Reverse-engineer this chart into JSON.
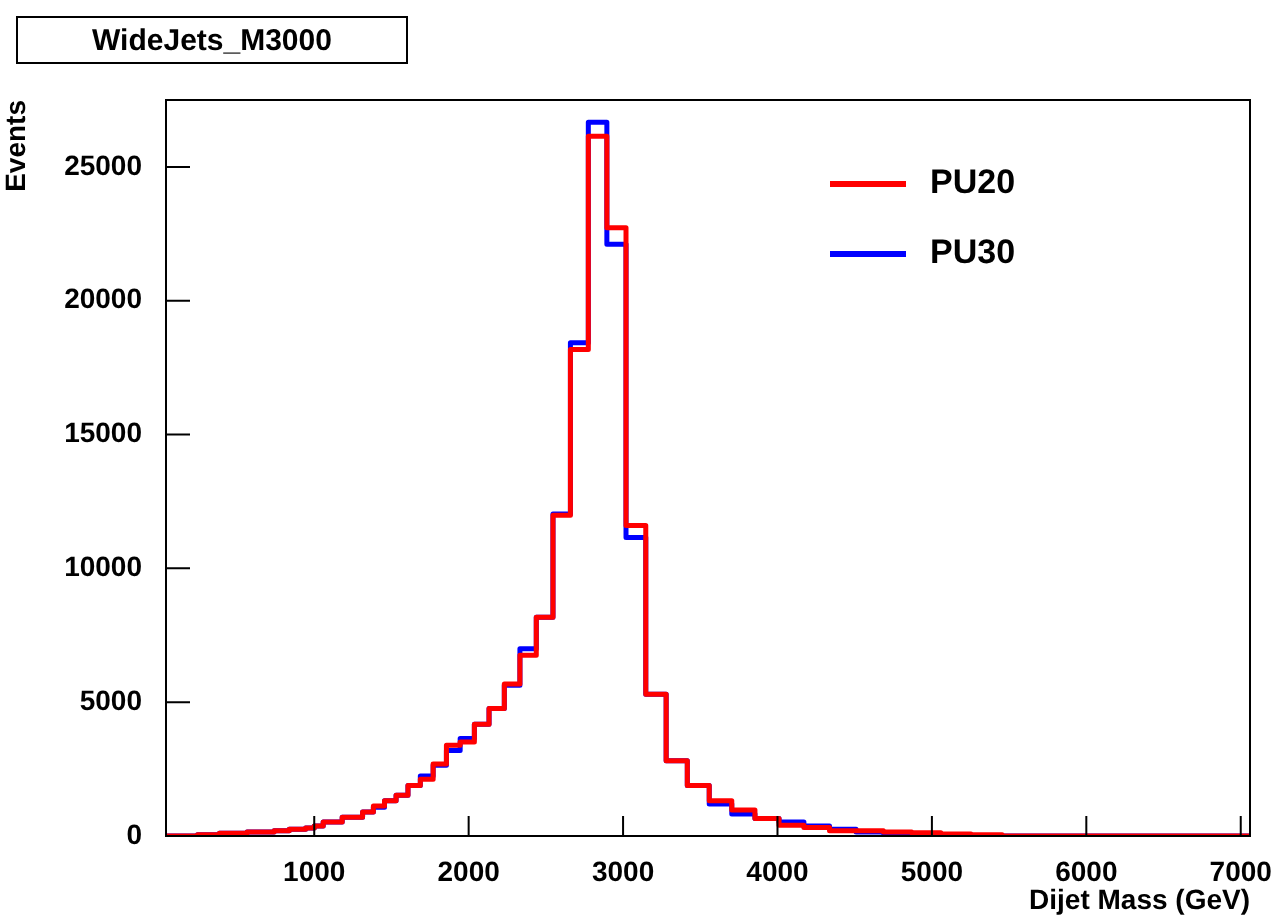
{
  "chart_data": {
    "type": "histogram",
    "title": "WideJets_M3000",
    "xlabel": "Dijet Mass (GeV)",
    "ylabel": "Events",
    "bins": [
      40,
      50,
      61,
      74,
      88,
      103,
      119,
      137,
      156,
      176,
      197,
      220,
      244,
      270,
      296,
      325,
      354,
      386,
      419,
      453,
      489,
      526,
      565,
      606,
      649,
      693,
      740,
      788,
      838,
      890,
      944,
      1000,
      1058,
      1118,
      1181,
      1246,
      1313,
      1383,
      1455,
      1530,
      1607,
      1687,
      1770,
      1856,
      1945,
      2037,
      2132,
      2231,
      2332,
      2438,
      2546,
      2659,
      2775,
      2895,
      3019,
      3147,
      3279,
      3416,
      3558,
      3704,
      3854,
      4010,
      4171,
      4337,
      4509,
      4686,
      4869,
      5058,
      5253,
      5455,
      5663,
      5877,
      6099,
      6328,
      6564,
      6808,
      7060
    ],
    "series": [
      {
        "name": "PU20",
        "color": "#ff0000",
        "values": [
          0,
          0,
          0,
          0,
          0,
          0,
          0,
          0,
          0,
          0,
          0,
          0,
          50,
          50,
          50,
          50,
          50,
          100,
          100,
          100,
          100,
          100,
          150,
          150,
          150,
          150,
          200,
          200,
          250,
          250,
          300,
          370,
          520,
          520,
          700,
          700,
          900,
          1120,
          1320,
          1520,
          1890,
          2120,
          2690,
          3390,
          3510,
          4180,
          4760,
          5680,
          6750,
          8170,
          11980,
          18180,
          26150,
          22730,
          11600,
          5300,
          2810,
          1890,
          1320,
          970,
          650,
          400,
          320,
          200,
          200,
          150,
          125,
          75,
          50,
          0,
          0,
          0,
          0,
          0,
          0,
          0
        ]
      },
      {
        "name": "PU30",
        "color": "#0000ff",
        "values": [
          0,
          0,
          0,
          0,
          0,
          0,
          0,
          0,
          0,
          0,
          0,
          0,
          50,
          50,
          50,
          50,
          50,
          100,
          100,
          100,
          100,
          100,
          150,
          150,
          150,
          150,
          200,
          200,
          250,
          250,
          300,
          370,
          520,
          520,
          700,
          700,
          900,
          1070,
          1320,
          1520,
          1890,
          2240,
          2640,
          3190,
          3640,
          4180,
          4760,
          5630,
          7000,
          8170,
          12030,
          18430,
          26670,
          22110,
          11150,
          5300,
          2810,
          1890,
          1200,
          820,
          650,
          520,
          375,
          250,
          150,
          100,
          75,
          50,
          0,
          0,
          0,
          0,
          0,
          0,
          0,
          0
        ]
      }
    ],
    "xlim": [
      40,
      7060
    ],
    "xticks": [
      1000,
      2000,
      3000,
      4000,
      5000,
      6000,
      7000
    ],
    "ylim": [
      0,
      27500
    ],
    "yticks": [
      0,
      5000,
      10000,
      15000,
      20000,
      25000
    ],
    "grid": false,
    "legend": "top right"
  }
}
